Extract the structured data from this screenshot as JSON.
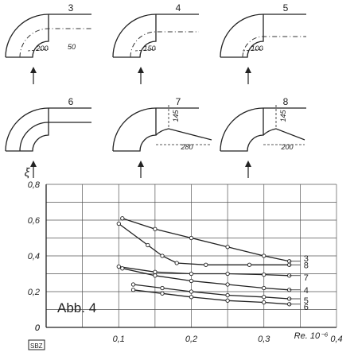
{
  "panels": [
    {
      "number": "3",
      "dims": [
        "200",
        "50"
      ]
    },
    {
      "number": "4",
      "dims": [
        "150"
      ]
    },
    {
      "number": "5",
      "dims": [
        "100"
      ]
    },
    {
      "number": "6",
      "dims": []
    },
    {
      "number": "7",
      "dims": [
        "145",
        "280"
      ]
    },
    {
      "number": "8",
      "dims": [
        "145",
        "200"
      ]
    }
  ],
  "chart_data": {
    "type": "line",
    "ylabel": "ξ",
    "xlabel": "Re. 10⁻⁶",
    "annotation": "Abb. 4",
    "xlim": [
      0,
      0.4
    ],
    "ylim": [
      0,
      0.8
    ],
    "x_ticks": [
      "0",
      "0,1",
      "0,2",
      "0,3",
      "0,4"
    ],
    "y_ticks": [
      "0",
      "0,2",
      "0,4",
      "0,6",
      "0,8"
    ],
    "grid": true,
    "series": [
      {
        "name": "3",
        "x": [
          0.105,
          0.15,
          0.2,
          0.25,
          0.3,
          0.335
        ],
        "y": [
          0.61,
          0.55,
          0.5,
          0.45,
          0.4,
          0.37
        ]
      },
      {
        "name": "8",
        "x": [
          0.1,
          0.14,
          0.16,
          0.18,
          0.22,
          0.28,
          0.335
        ],
        "y": [
          0.58,
          0.46,
          0.4,
          0.36,
          0.35,
          0.35,
          0.35
        ]
      },
      {
        "name": "7",
        "x": [
          0.1,
          0.15,
          0.2,
          0.25,
          0.3,
          0.335
        ],
        "y": [
          0.34,
          0.31,
          0.3,
          0.3,
          0.295,
          0.29
        ]
      },
      {
        "name": "4",
        "x": [
          0.105,
          0.15,
          0.2,
          0.25,
          0.3,
          0.335
        ],
        "y": [
          0.33,
          0.29,
          0.26,
          0.24,
          0.22,
          0.21
        ]
      },
      {
        "name": "5",
        "x": [
          0.12,
          0.16,
          0.2,
          0.25,
          0.3,
          0.335
        ],
        "y": [
          0.24,
          0.22,
          0.2,
          0.18,
          0.17,
          0.16
        ]
      },
      {
        "name": "6",
        "x": [
          0.12,
          0.16,
          0.2,
          0.25,
          0.3,
          0.335
        ],
        "y": [
          0.21,
          0.19,
          0.17,
          0.15,
          0.14,
          0.13
        ]
      }
    ]
  },
  "stamp": "SBZ"
}
